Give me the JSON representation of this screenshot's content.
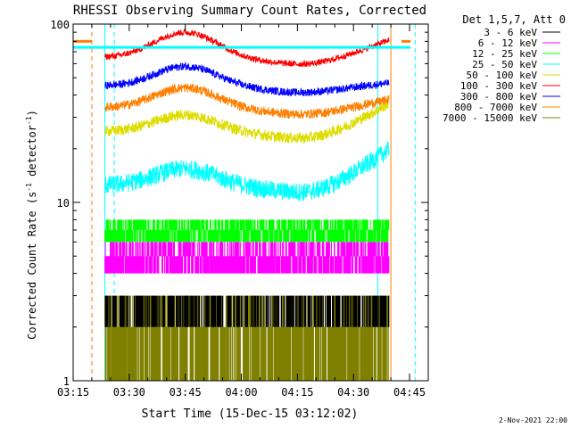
{
  "chart_data": {
    "type": "line",
    "title": "RHESSI Observing Summary Count Rates, Corrected",
    "xlabel": "Start Time (15-Dec-15 03:12:02)",
    "ylabel_main": "Corrected Count Rate (s",
    "ylabel_sup1": "-1",
    "ylabel_mid": " detector",
    "ylabel_sup2": "-1",
    "ylabel_end": ")",
    "yscale": "log",
    "ylim": [
      1,
      100
    ],
    "xlim_minutes": [
      3.0,
      98.0
    ],
    "x_ticks": [
      {
        "label": "03:15",
        "minute": 3
      },
      {
        "label": "03:30",
        "minute": 18
      },
      {
        "label": "03:45",
        "minute": 33
      },
      {
        "label": "04:00",
        "minute": 48
      },
      {
        "label": "04:15",
        "minute": 63
      },
      {
        "label": "04:30",
        "minute": 78
      },
      {
        "label": "04:45",
        "minute": 93
      }
    ],
    "y_ticks": [
      {
        "label": "1",
        "value": 1
      },
      {
        "label": "10",
        "value": 10
      },
      {
        "label": "100",
        "value": 100
      }
    ],
    "legend_title": "Det 1,5,7, Att 0",
    "legend_position": "top-right",
    "footer_date": "2-Nov-2021 22:00",
    "series": [
      {
        "name": "3 - 6 keV",
        "color": "#000000",
        "kind": "discrete",
        "levels": [
          2,
          3
        ]
      },
      {
        "name": "6 - 12 keV",
        "color": "#ff00ff",
        "kind": "discrete",
        "levels": [
          4,
          5,
          6
        ]
      },
      {
        "name": "12 - 25 keV",
        "color": "#00ff00",
        "kind": "discrete",
        "levels": [
          6,
          7,
          8
        ]
      },
      {
        "name": "25 - 50 keV",
        "color": "#00ffff",
        "kind": "continuous",
        "base": 12.5,
        "peak": 15.5,
        "end": 20,
        "noise": 0.12
      },
      {
        "name": "50 - 100 keV",
        "color": "#dddd00",
        "kind": "continuous",
        "base": 25,
        "peak": 31,
        "end": 36,
        "noise": 0.07
      },
      {
        "name": "100 - 300 keV",
        "color": "#ff0000",
        "kind": "continuous",
        "base": 65,
        "peak": 90,
        "end": 82,
        "noise": 0.04
      },
      {
        "name": "300 - 800 keV",
        "color": "#0000ff",
        "kind": "continuous",
        "base": 45,
        "peak": 58,
        "end": 47,
        "noise": 0.05
      },
      {
        "name": "800 - 7000 keV",
        "color": "#ff7f00",
        "kind": "continuous",
        "base": 34,
        "peak": 44,
        "end": 38,
        "noise": 0.06
      },
      {
        "name": "7000 - 15000 keV",
        "color": "#808000",
        "kind": "discrete",
        "levels": [
          1,
          2,
          3
        ]
      }
    ],
    "vertical_markers": [
      {
        "minute": 8.0,
        "color": "#ff7f00",
        "style": "dashed"
      },
      {
        "minute": 11.5,
        "color": "#00ffff",
        "style": "solid"
      },
      {
        "minute": 14.0,
        "color": "#00ffff",
        "style": "dashed"
      },
      {
        "minute": 84.5,
        "color": "#00ffff",
        "style": "solid"
      },
      {
        "minute": 88.0,
        "color": "#ff7f00",
        "style": "solid"
      },
      {
        "minute": 94.5,
        "color": "#00ffff",
        "style": "dashed"
      }
    ],
    "data_start_minute": 11.5,
    "data_end_minute": 87.5
  }
}
